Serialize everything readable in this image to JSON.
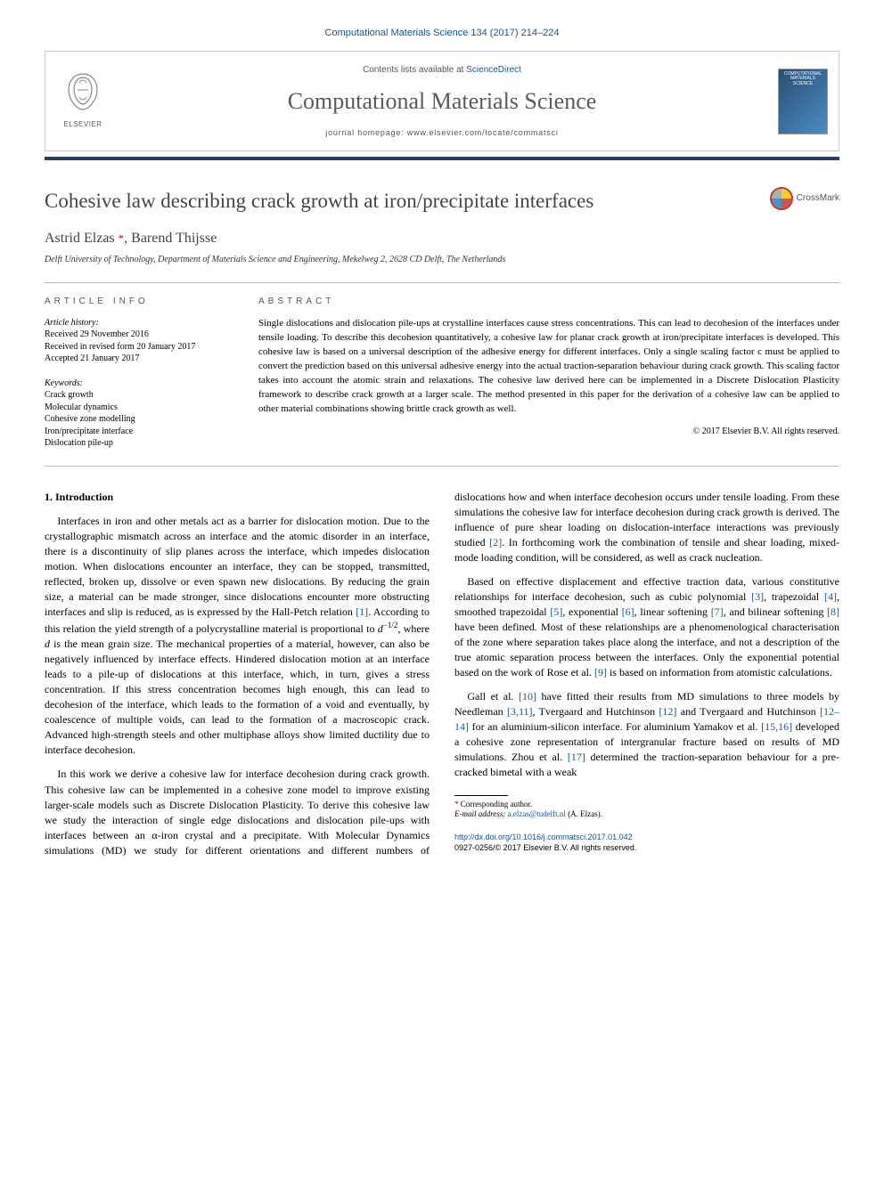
{
  "citation": "Computational Materials Science 134 (2017) 214–224",
  "header": {
    "contents_prefix": "Contents lists available at ",
    "contents_link": "ScienceDirect",
    "journal": "Computational Materials Science",
    "homepage_prefix": "journal homepage: ",
    "homepage_url": "www.elsevier.com/locate/commatsci",
    "publisher": "ELSEVIER",
    "cover_text": "COMPUTATIONAL MATERIALS SCIENCE"
  },
  "title": "Cohesive law describing crack growth at iron/precipitate interfaces",
  "crossmark_label": "CrossMark",
  "authors_html": "Astrid Elzas <span class='corr'>*</span>, Barend Thijsse",
  "affiliation": "Delft University of Technology, Department of Materials Science and Engineering, Mekelweg 2, 2628 CD Delft, The Netherlands",
  "info": {
    "label": "ARTICLE INFO",
    "history_label": "Article history:",
    "received": "Received 29 November 2016",
    "revised": "Received in revised form 20 January 2017",
    "accepted": "Accepted 21 January 2017",
    "keywords_label": "Keywords:",
    "keywords": [
      "Crack growth",
      "Molecular dynamics",
      "Cohesive zone modelling",
      "Iron/precipitate interface",
      "Dislocation pile-up"
    ]
  },
  "abstract": {
    "label": "ABSTRACT",
    "text": "Single dislocations and dislocation pile-ups at crystalline interfaces cause stress concentrations. This can lead to decohesion of the interfaces under tensile loading. To describe this decohesion quantitatively, a cohesive law for planar crack growth at iron/precipitate interfaces is developed. This cohesive law is based on a universal description of the adhesive energy for different interfaces. Only a single scaling factor c must be applied to convert the prediction based on this universal adhesive energy into the actual traction-separation behaviour during crack growth. This scaling factor takes into account the atomic strain and relaxations. The cohesive law derived here can be implemented in a Discrete Dislocation Plasticity framework to describe crack growth at a larger scale. The method presented in this paper for the derivation of a cohesive law can be applied to other material combinations showing brittle crack growth as well.",
    "copyright": "© 2017 Elsevier B.V. All rights reserved."
  },
  "body": {
    "heading": "1. Introduction",
    "p1_html": "Interfaces in iron and other metals act as a barrier for dislocation motion. Due to the crystallographic mismatch across an interface and the atomic disorder in an interface, there is a discontinuity of slip planes across the interface, which impedes dislocation motion. When dislocations encounter an interface, they can be stopped, transmitted, reflected, broken up, dissolve or even spawn new dislocations. By reducing the grain size, a material can be made stronger, since dislocations encounter more obstructing interfaces and slip is reduced, as is expressed by the Hall-Petch relation <span class='ref'>[1]</span>. According to this relation the yield strength of a polycrystalline material is proportional to <i>d</i><sup>−1/2</sup>, where <i>d</i> is the mean grain size. The mechanical properties of a material, however, can also be negatively influenced by interface effects. Hindered dislocation motion at an interface leads to a pile-up of dislocations at this interface, which, in turn, gives a stress concentration. If this stress concentration becomes high enough, this can lead to decohesion of the interface, which leads to the formation of a void and eventually, by coalescence of multiple voids, can lead to the formation of a macroscopic crack. Advanced high-strength steels and other multiphase alloys show limited ductility due to interface decohesion.",
    "p2_html": "In this work we derive a cohesive law for interface decohesion during crack growth. This cohesive law can be implemented in a cohesive zone model to improve existing larger-scale models such as Discrete Dislocation Plasticity. To derive this cohesive law we study the interaction of single edge dislocations and dislocation pile-ups with interfaces between an α-iron crystal and a precipitate. With Molecular Dynamics simulations (MD) we study for different orientations and different numbers of dislocations how and when interface decohesion occurs under tensile loading. From these simulations the cohesive law for interface decohesion during crack growth is derived. The influence of pure shear loading on dislocation-interface interactions was previously studied <span class='ref'>[2]</span>. In forthcoming work the combination of tensile and shear loading, mixed-mode loading condition, will be considered, as well as crack nucleation.",
    "p3_html": "Based on effective displacement and effective traction data, various constitutive relationships for interface decohesion, such as cubic polynomial <span class='ref'>[3]</span>, trapezoidal <span class='ref'>[4]</span>, smoothed trapezoidal <span class='ref'>[5]</span>, exponential <span class='ref'>[6]</span>, linear softening <span class='ref'>[7]</span>, and bilinear softening <span class='ref'>[8]</span> have been defined. Most of these relationships are a phenomenological characterisation of the zone where separation takes place along the interface, and not a description of the true atomic separation process between the interfaces. Only the exponential potential based on the work of Rose et al. <span class='ref'>[9]</span> is based on information from atomistic calculations.",
    "p4_html": "Gall et al. <span class='ref'>[10]</span> have fitted their results from MD simulations to three models by Needleman <span class='ref'>[3,11]</span>, Tvergaard and Hutchinson <span class='ref'>[12]</span> and Tvergaard and Hutchinson <span class='ref'>[12–14]</span> for an aluminium-silicon interface. For aluminium Yamakov et al. <span class='ref'>[15,16]</span> developed a cohesive zone representation of intergranular fracture based on results of MD simulations. Zhou et al. <span class='ref'>[17]</span> determined the traction-separation behaviour for a pre-cracked bimetal with a weak"
  },
  "footnotes": {
    "corr_label": "Corresponding author.",
    "email_label": "E-mail address:",
    "email": "a.elzas@tudelft.nl",
    "email_name": "(A. Elzas)."
  },
  "footer": {
    "doi": "http://dx.doi.org/10.1016/j.commatsci.2017.01.042",
    "issn_line": "0927-0256/© 2017 Elsevier B.V. All rights reserved."
  },
  "colors": {
    "link": "#1a5490",
    "rule": "#2a3d5e",
    "title_grey": "#444444",
    "corr_red": "#cc0000"
  }
}
